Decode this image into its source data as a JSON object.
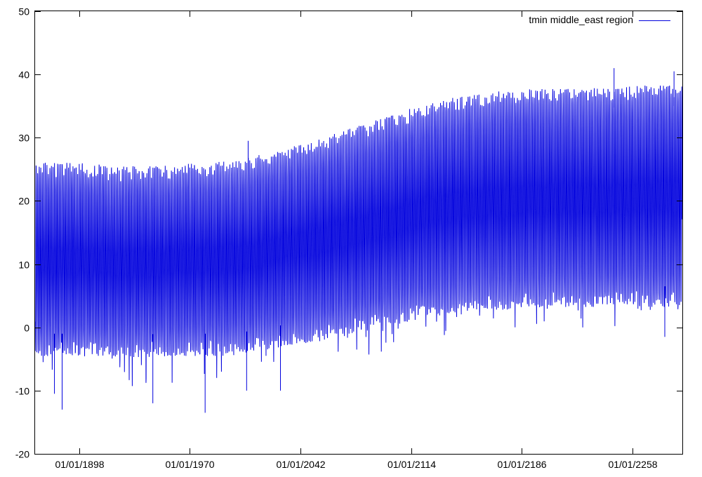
{
  "chart_data": {
    "type": "line",
    "title": "",
    "xlabel": "",
    "ylabel": "",
    "x_axis": {
      "kind": "date",
      "range": [
        "1869-06-01",
        "2290-06-01"
      ],
      "tick_labels": [
        "01/01/1898",
        "01/01/1970",
        "01/01/2042",
        "01/01/2114",
        "01/01/2186",
        "01/01/2258"
      ],
      "tick_values": [
        "1898-01-01",
        "1970-01-01",
        "2042-01-01",
        "2114-01-01",
        "2186-01-01",
        "2258-01-01"
      ]
    },
    "ylim": [
      -20,
      50
    ],
    "yticks": [
      -20,
      -10,
      0,
      10,
      20,
      30,
      40,
      50
    ],
    "grid": false,
    "legend": {
      "position": "top-right",
      "entries": [
        "tmin middle_east region"
      ]
    },
    "series": [
      {
        "name": "tmin middle_east region",
        "color": "#0000dd",
        "sampling": "monthly",
        "seasonal_cycle": true,
        "envelope_points": [
          {
            "x": "1870-01-01",
            "upper": 26.5,
            "lower": -5
          },
          {
            "x": "1900-01-01",
            "upper": 26.5,
            "lower": -5
          },
          {
            "x": "1920-01-01",
            "upper": 26.0,
            "lower": -5.5
          },
          {
            "x": "1950-01-01",
            "upper": 26.0,
            "lower": -5
          },
          {
            "x": "1980-01-01",
            "upper": 26.5,
            "lower": -5
          },
          {
            "x": "2000-01-01",
            "upper": 27.0,
            "lower": -5
          },
          {
            "x": "2020-01-01",
            "upper": 28.0,
            "lower": -4
          },
          {
            "x": "2050-01-01",
            "upper": 30.0,
            "lower": -3
          },
          {
            "x": "2080-01-01",
            "upper": 32.5,
            "lower": -1.5
          },
          {
            "x": "2110-01-01",
            "upper": 35.0,
            "lower": 0
          },
          {
            "x": "2140-01-01",
            "upper": 37.0,
            "lower": 1.5
          },
          {
            "x": "2170-01-01",
            "upper": 38.0,
            "lower": 2.0
          },
          {
            "x": "2200-01-01",
            "upper": 38.5,
            "lower": 2.5
          },
          {
            "x": "2230-01-01",
            "upper": 38.5,
            "lower": 2.5
          },
          {
            "x": "2260-01-01",
            "upper": 39.0,
            "lower": 2.5
          },
          {
            "x": "2290-01-01",
            "upper": 39.0,
            "lower": 2.5
          }
        ],
        "notable_extremes": [
          {
            "x": "1887-01-01",
            "y": -13
          },
          {
            "x": "1882-01-01",
            "y": -10.5
          },
          {
            "x": "1946-01-01",
            "y": -12
          },
          {
            "x": "1980-01-01",
            "y": -13.5
          },
          {
            "x": "2007-01-01",
            "y": -10
          },
          {
            "x": "2029-01-01",
            "y": -10
          },
          {
            "x": "2008-01-01",
            "y": 29.5
          },
          {
            "x": "2279-01-01",
            "y": -1.5
          },
          {
            "x": "2246-01-01",
            "y": 41
          },
          {
            "x": "2285-01-01",
            "y": 40.5
          }
        ]
      }
    ]
  }
}
